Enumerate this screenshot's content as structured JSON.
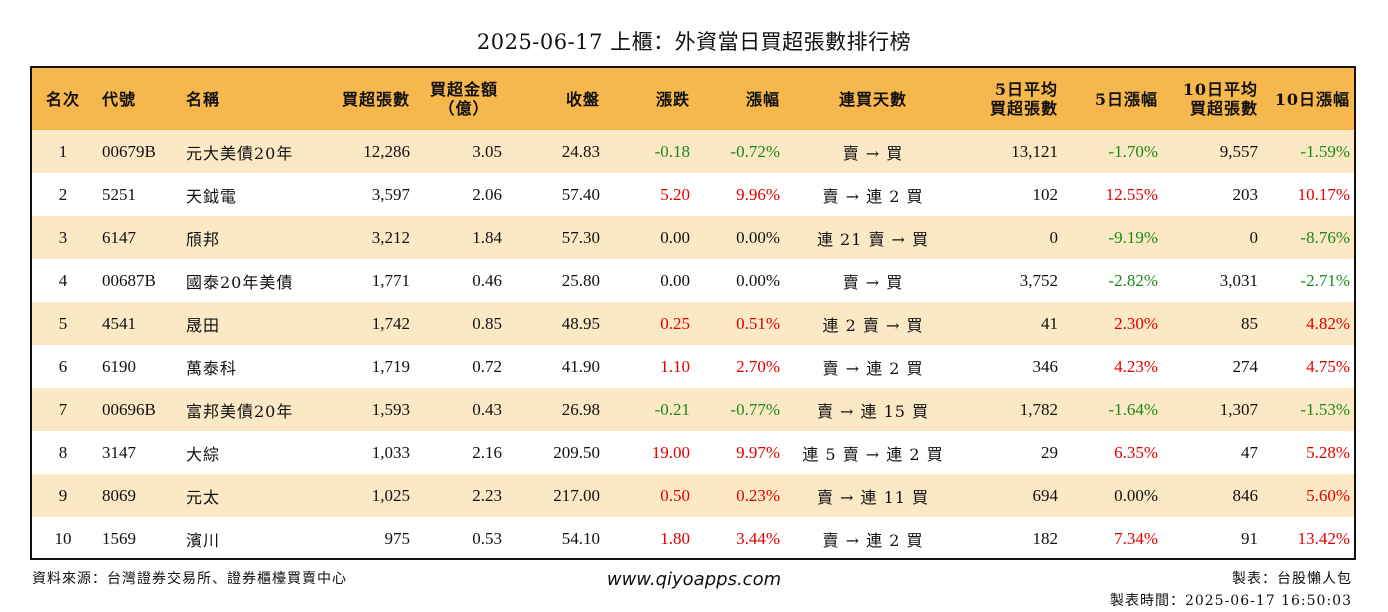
{
  "title": "2025-06-17 上櫃：外資當日買超張數排行榜",
  "colors": {
    "header_bg": "#f6b74c",
    "row_alt": "#fbe8c4",
    "up": "#e00000",
    "down": "#1a8a1a"
  },
  "headers": {
    "rank": "名次",
    "code": "代號",
    "name": "名稱",
    "shares": "買超張數",
    "amount_l1": "買超金額",
    "amount_l2": "（億）",
    "close": "收盤",
    "change": "漲跌",
    "pct": "漲幅",
    "streak": "連買天數",
    "avg5_l1": "5日平均",
    "avg5_l2": "買超張數",
    "pct5": "5日漲幅",
    "avg10_l1": "10日平均",
    "avg10_l2": "買超張數",
    "pct10": "10日漲幅"
  },
  "rows": [
    {
      "rank": "1",
      "code": "00679B",
      "name": "元大美債20年",
      "shares": "12,286",
      "amount": "3.05",
      "close": "24.83",
      "change": "-0.18",
      "pct": "-0.72%",
      "streak": "賣 → 買",
      "avg5": "13,121",
      "pct5": "-1.70%",
      "avg10": "9,557",
      "pct10": "-1.59%",
      "chg_dir": "down",
      "pct5_dir": "down",
      "pct10_dir": "down"
    },
    {
      "rank": "2",
      "code": "5251",
      "name": "天鉞電",
      "shares": "3,597",
      "amount": "2.06",
      "close": "57.40",
      "change": "5.20",
      "pct": "9.96%",
      "streak": "賣 → 連 2 買",
      "avg5": "102",
      "pct5": "12.55%",
      "avg10": "203",
      "pct10": "10.17%",
      "chg_dir": "up",
      "pct5_dir": "up",
      "pct10_dir": "up"
    },
    {
      "rank": "3",
      "code": "6147",
      "name": "頎邦",
      "shares": "3,212",
      "amount": "1.84",
      "close": "57.30",
      "change": "0.00",
      "pct": "0.00%",
      "streak": "連 21 賣 → 買",
      "avg5": "0",
      "pct5": "-9.19%",
      "avg10": "0",
      "pct10": "-8.76%",
      "chg_dir": "flat",
      "pct5_dir": "down",
      "pct10_dir": "down"
    },
    {
      "rank": "4",
      "code": "00687B",
      "name": "國泰20年美債",
      "shares": "1,771",
      "amount": "0.46",
      "close": "25.80",
      "change": "0.00",
      "pct": "0.00%",
      "streak": "賣 → 買",
      "avg5": "3,752",
      "pct5": "-2.82%",
      "avg10": "3,031",
      "pct10": "-2.71%",
      "chg_dir": "flat",
      "pct5_dir": "down",
      "pct10_dir": "down"
    },
    {
      "rank": "5",
      "code": "4541",
      "name": "晟田",
      "shares": "1,742",
      "amount": "0.85",
      "close": "48.95",
      "change": "0.25",
      "pct": "0.51%",
      "streak": "連 2 賣 → 買",
      "avg5": "41",
      "pct5": "2.30%",
      "avg10": "85",
      "pct10": "4.82%",
      "chg_dir": "up",
      "pct5_dir": "up",
      "pct10_dir": "up"
    },
    {
      "rank": "6",
      "code": "6190",
      "name": "萬泰科",
      "shares": "1,719",
      "amount": "0.72",
      "close": "41.90",
      "change": "1.10",
      "pct": "2.70%",
      "streak": "賣 → 連 2 買",
      "avg5": "346",
      "pct5": "4.23%",
      "avg10": "274",
      "pct10": "4.75%",
      "chg_dir": "up",
      "pct5_dir": "up",
      "pct10_dir": "up"
    },
    {
      "rank": "7",
      "code": "00696B",
      "name": "富邦美債20年",
      "shares": "1,593",
      "amount": "0.43",
      "close": "26.98",
      "change": "-0.21",
      "pct": "-0.77%",
      "streak": "賣 → 連 15 買",
      "avg5": "1,782",
      "pct5": "-1.64%",
      "avg10": "1,307",
      "pct10": "-1.53%",
      "chg_dir": "down",
      "pct5_dir": "down",
      "pct10_dir": "down"
    },
    {
      "rank": "8",
      "code": "3147",
      "name": "大綜",
      "shares": "1,033",
      "amount": "2.16",
      "close": "209.50",
      "change": "19.00",
      "pct": "9.97%",
      "streak": "連 5 賣 → 連 2 買",
      "avg5": "29",
      "pct5": "6.35%",
      "avg10": "47",
      "pct10": "5.28%",
      "chg_dir": "up",
      "pct5_dir": "up",
      "pct10_dir": "up"
    },
    {
      "rank": "9",
      "code": "8069",
      "name": "元太",
      "shares": "1,025",
      "amount": "2.23",
      "close": "217.00",
      "change": "0.50",
      "pct": "0.23%",
      "streak": "賣 → 連 11 買",
      "avg5": "694",
      "pct5": "0.00%",
      "avg10": "846",
      "pct10": "5.60%",
      "chg_dir": "up",
      "pct5_dir": "flat",
      "pct10_dir": "up"
    },
    {
      "rank": "10",
      "code": "1569",
      "name": "濱川",
      "shares": "975",
      "amount": "0.53",
      "close": "54.10",
      "change": "1.80",
      "pct": "3.44%",
      "streak": "賣 → 連 2 買",
      "avg5": "182",
      "pct5": "7.34%",
      "avg10": "91",
      "pct10": "13.42%",
      "chg_dir": "up",
      "pct5_dir": "up",
      "pct10_dir": "up"
    }
  ],
  "footer": {
    "source": "資料來源：台灣證券交易所、證券櫃檯買賣中心",
    "website": "www.qiyoapps.com",
    "maker": "製表：台股懶人包",
    "time": "製表時間：2025-06-17 16:50:03"
  }
}
